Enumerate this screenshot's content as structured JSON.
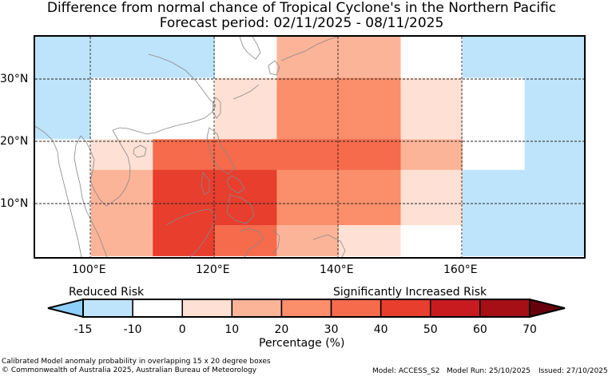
{
  "title": {
    "line1": "Difference from normal chance of Tropical Cyclone's in the Northern Pacific",
    "line2": "Forecast period: 02/11/2025 - 08/11/2025"
  },
  "map": {
    "lon_ticks": [
      "100°E",
      "120°E",
      "140°E",
      "160°E"
    ],
    "lat_ticks": [
      "30°N",
      "20°N",
      "10°N"
    ],
    "cells": [
      {
        "lon": [
          90,
          110
        ],
        "lat": [
          30,
          37
        ],
        "value": -15
      },
      {
        "lon": [
          110,
          120
        ],
        "lat": [
          30,
          37
        ],
        "value": -15
      },
      {
        "lon": [
          120,
          130
        ],
        "lat": [
          30,
          37
        ],
        "value": -5
      },
      {
        "lon": [
          130,
          150
        ],
        "lat": [
          30,
          37
        ],
        "value": 15
      },
      {
        "lon": [
          150,
          160
        ],
        "lat": [
          30,
          37
        ],
        "value": -5
      },
      {
        "lon": [
          160,
          180
        ],
        "lat": [
          30,
          37
        ],
        "value": -15
      },
      {
        "lon": [
          90,
          100
        ],
        "lat": [
          20,
          30
        ],
        "value": -15
      },
      {
        "lon": [
          100,
          110
        ],
        "lat": [
          20,
          30
        ],
        "value": -10
      },
      {
        "lon": [
          110,
          120
        ],
        "lat": [
          20,
          30
        ],
        "value": -5
      },
      {
        "lon": [
          120,
          130
        ],
        "lat": [
          20,
          30
        ],
        "value": 5
      },
      {
        "lon": [
          130,
          150
        ],
        "lat": [
          20,
          30
        ],
        "value": 25
      },
      {
        "lon": [
          150,
          160
        ],
        "lat": [
          20,
          30
        ],
        "value": 5
      },
      {
        "lon": [
          160,
          170
        ],
        "lat": [
          20,
          30
        ],
        "value": -10
      },
      {
        "lon": [
          170,
          180
        ],
        "lat": [
          20,
          30
        ],
        "value": -15
      },
      {
        "lon": [
          90,
          100
        ],
        "lat": [
          15,
          20
        ],
        "value": -5
      },
      {
        "lon": [
          100,
          110
        ],
        "lat": [
          15,
          20
        ],
        "value": 5
      },
      {
        "lon": [
          110,
          150
        ],
        "lat": [
          15,
          20
        ],
        "value": 35
      },
      {
        "lon": [
          150,
          160
        ],
        "lat": [
          15,
          20
        ],
        "value": 15
      },
      {
        "lon": [
          160,
          170
        ],
        "lat": [
          15,
          20
        ],
        "value": -10
      },
      {
        "lon": [
          170,
          180
        ],
        "lat": [
          15,
          20
        ],
        "value": -15
      },
      {
        "lon": [
          90,
          100
        ],
        "lat": [
          6,
          15
        ],
        "value": -5
      },
      {
        "lon": [
          100,
          110
        ],
        "lat": [
          6,
          15
        ],
        "value": 15
      },
      {
        "lon": [
          110,
          130
        ],
        "lat": [
          6,
          15
        ],
        "value": 45
      },
      {
        "lon": [
          130,
          150
        ],
        "lat": [
          6,
          15
        ],
        "value": 25
      },
      {
        "lon": [
          150,
          160
        ],
        "lat": [
          6,
          15
        ],
        "value": 5
      },
      {
        "lon": [
          160,
          180
        ],
        "lat": [
          6,
          15
        ],
        "value": -15
      },
      {
        "lon": [
          90,
          100
        ],
        "lat": [
          1,
          6
        ],
        "value": -5
      },
      {
        "lon": [
          100,
          110
        ],
        "lat": [
          1,
          6
        ],
        "value": 15
      },
      {
        "lon": [
          110,
          120
        ],
        "lat": [
          1,
          6
        ],
        "value": 45
      },
      {
        "lon": [
          120,
          130
        ],
        "lat": [
          1,
          6
        ],
        "value": 35
      },
      {
        "lon": [
          130,
          140
        ],
        "lat": [
          1,
          6
        ],
        "value": 15
      },
      {
        "lon": [
          140,
          150
        ],
        "lat": [
          1,
          6
        ],
        "value": 5
      },
      {
        "lon": [
          150,
          160
        ],
        "lat": [
          1,
          6
        ],
        "value": -5
      },
      {
        "lon": [
          160,
          180
        ],
        "lat": [
          1,
          6
        ],
        "value": -15
      }
    ]
  },
  "colorbar": {
    "label_left": "Reduced Risk",
    "label_right": "Significantly Increased Risk",
    "ticks": [
      "-15",
      "-10",
      "0",
      "10",
      "20",
      "30",
      "40",
      "50",
      "60",
      "70"
    ],
    "xlabel": "Percentage (%)",
    "colors": [
      "#bee4fb",
      "#ffffff",
      "#fee1d4",
      "#fcb498",
      "#fb8e6b",
      "#f56b4c",
      "#e73e2e",
      "#c81b20",
      "#a50f15"
    ],
    "under_color": "#8ecffa",
    "over_color": "#67000d"
  },
  "footer": {
    "desc": "Calibrated Model anomaly probability in overlapping 15 x 20 degree boxes",
    "copyright": "© Commonwealth of Australia 2025, Australian Bureau of Meteorology",
    "model": "Model: ACCESS_S2",
    "run": "Model Run: 25/10/2025",
    "issued": "Issued: 27/10/2025"
  }
}
